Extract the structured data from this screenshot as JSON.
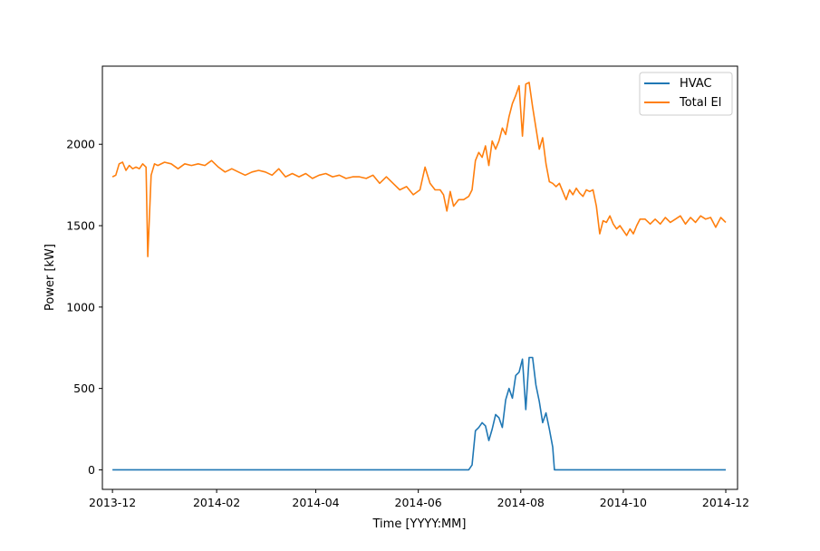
{
  "chart_data": {
    "type": "line",
    "xlabel": "Time [YYYY:MM]",
    "ylabel": "Power [kW]",
    "x_ticks": [
      "2013-12",
      "2014-02",
      "2014-04",
      "2014-06",
      "2014-08",
      "2014-10",
      "2014-12"
    ],
    "y_ticks": [
      0,
      500,
      1000,
      1500,
      2000
    ],
    "xlim": [
      "2013-11-25",
      "2014-12-08"
    ],
    "ylim": [
      -120,
      2480
    ],
    "grid": false,
    "legend_position": "top-right",
    "series": [
      {
        "name": "HVAC",
        "color": "#1f77b4",
        "points": [
          [
            "2013-12-01",
            0
          ],
          [
            "2014-02-01",
            0
          ],
          [
            "2014-04-01",
            0
          ],
          [
            "2014-06-01",
            0
          ],
          [
            "2014-07-01",
            0
          ],
          [
            "2014-07-03",
            30
          ],
          [
            "2014-07-05",
            240
          ],
          [
            "2014-07-07",
            260
          ],
          [
            "2014-07-09",
            290
          ],
          [
            "2014-07-11",
            270
          ],
          [
            "2014-07-13",
            180
          ],
          [
            "2014-07-15",
            250
          ],
          [
            "2014-07-17",
            340
          ],
          [
            "2014-07-19",
            320
          ],
          [
            "2014-07-21",
            260
          ],
          [
            "2014-07-23",
            430
          ],
          [
            "2014-07-25",
            500
          ],
          [
            "2014-07-27",
            440
          ],
          [
            "2014-07-29",
            580
          ],
          [
            "2014-07-31",
            600
          ],
          [
            "2014-08-02",
            680
          ],
          [
            "2014-08-04",
            370
          ],
          [
            "2014-08-06",
            690
          ],
          [
            "2014-08-08",
            690
          ],
          [
            "2014-08-10",
            520
          ],
          [
            "2014-08-12",
            420
          ],
          [
            "2014-08-14",
            290
          ],
          [
            "2014-08-16",
            350
          ],
          [
            "2014-08-18",
            250
          ],
          [
            "2014-08-20",
            140
          ],
          [
            "2014-08-21",
            0
          ],
          [
            "2014-10-01",
            0
          ],
          [
            "2014-12-01",
            0
          ]
        ]
      },
      {
        "name": "Total El",
        "color": "#ff7f0e",
        "points": [
          [
            "2013-12-01",
            1800
          ],
          [
            "2013-12-03",
            1810
          ],
          [
            "2013-12-05",
            1880
          ],
          [
            "2013-12-07",
            1890
          ],
          [
            "2013-12-09",
            1840
          ],
          [
            "2013-12-11",
            1870
          ],
          [
            "2013-12-13",
            1850
          ],
          [
            "2013-12-15",
            1860
          ],
          [
            "2013-12-17",
            1850
          ],
          [
            "2013-12-19",
            1880
          ],
          [
            "2013-12-21",
            1860
          ],
          [
            "2013-12-22",
            1310
          ],
          [
            "2013-12-24",
            1810
          ],
          [
            "2013-12-26",
            1880
          ],
          [
            "2013-12-28",
            1870
          ],
          [
            "2014-01-01",
            1890
          ],
          [
            "2014-01-05",
            1880
          ],
          [
            "2014-01-09",
            1850
          ],
          [
            "2014-01-13",
            1880
          ],
          [
            "2014-01-17",
            1870
          ],
          [
            "2014-01-21",
            1880
          ],
          [
            "2014-01-25",
            1870
          ],
          [
            "2014-01-29",
            1900
          ],
          [
            "2014-02-02",
            1860
          ],
          [
            "2014-02-06",
            1830
          ],
          [
            "2014-02-10",
            1850
          ],
          [
            "2014-02-14",
            1830
          ],
          [
            "2014-02-18",
            1810
          ],
          [
            "2014-02-22",
            1830
          ],
          [
            "2014-02-26",
            1840
          ],
          [
            "2014-03-02",
            1830
          ],
          [
            "2014-03-06",
            1810
          ],
          [
            "2014-03-10",
            1850
          ],
          [
            "2014-03-14",
            1800
          ],
          [
            "2014-03-18",
            1820
          ],
          [
            "2014-03-22",
            1800
          ],
          [
            "2014-03-26",
            1820
          ],
          [
            "2014-03-30",
            1790
          ],
          [
            "2014-04-03",
            1810
          ],
          [
            "2014-04-07",
            1820
          ],
          [
            "2014-04-11",
            1800
          ],
          [
            "2014-04-15",
            1810
          ],
          [
            "2014-04-19",
            1790
          ],
          [
            "2014-04-23",
            1800
          ],
          [
            "2014-04-27",
            1800
          ],
          [
            "2014-05-01",
            1790
          ],
          [
            "2014-05-05",
            1810
          ],
          [
            "2014-05-09",
            1760
          ],
          [
            "2014-05-13",
            1800
          ],
          [
            "2014-05-17",
            1760
          ],
          [
            "2014-05-21",
            1720
          ],
          [
            "2014-05-25",
            1740
          ],
          [
            "2014-05-29",
            1690
          ],
          [
            "2014-06-02",
            1720
          ],
          [
            "2014-06-05",
            1860
          ],
          [
            "2014-06-08",
            1760
          ],
          [
            "2014-06-11",
            1720
          ],
          [
            "2014-06-14",
            1720
          ],
          [
            "2014-06-16",
            1690
          ],
          [
            "2014-06-18",
            1590
          ],
          [
            "2014-06-20",
            1710
          ],
          [
            "2014-06-22",
            1620
          ],
          [
            "2014-06-25",
            1660
          ],
          [
            "2014-06-28",
            1660
          ],
          [
            "2014-07-01",
            1680
          ],
          [
            "2014-07-03",
            1720
          ],
          [
            "2014-07-05",
            1900
          ],
          [
            "2014-07-07",
            1950
          ],
          [
            "2014-07-09",
            1920
          ],
          [
            "2014-07-11",
            1990
          ],
          [
            "2014-07-13",
            1870
          ],
          [
            "2014-07-15",
            2020
          ],
          [
            "2014-07-17",
            1970
          ],
          [
            "2014-07-19",
            2020
          ],
          [
            "2014-07-21",
            2100
          ],
          [
            "2014-07-23",
            2060
          ],
          [
            "2014-07-25",
            2170
          ],
          [
            "2014-07-27",
            2250
          ],
          [
            "2014-07-29",
            2300
          ],
          [
            "2014-07-31",
            2360
          ],
          [
            "2014-08-02",
            2050
          ],
          [
            "2014-08-04",
            2370
          ],
          [
            "2014-08-06",
            2380
          ],
          [
            "2014-08-08",
            2230
          ],
          [
            "2014-08-10",
            2100
          ],
          [
            "2014-08-12",
            1970
          ],
          [
            "2014-08-14",
            2040
          ],
          [
            "2014-08-16",
            1880
          ],
          [
            "2014-08-18",
            1770
          ],
          [
            "2014-08-20",
            1760
          ],
          [
            "2014-08-22",
            1740
          ],
          [
            "2014-08-24",
            1760
          ],
          [
            "2014-08-26",
            1710
          ],
          [
            "2014-08-28",
            1660
          ],
          [
            "2014-08-30",
            1720
          ],
          [
            "2014-09-01",
            1690
          ],
          [
            "2014-09-03",
            1730
          ],
          [
            "2014-09-05",
            1700
          ],
          [
            "2014-09-07",
            1680
          ],
          [
            "2014-09-09",
            1720
          ],
          [
            "2014-09-11",
            1710
          ],
          [
            "2014-09-13",
            1720
          ],
          [
            "2014-09-15",
            1620
          ],
          [
            "2014-09-17",
            1450
          ],
          [
            "2014-09-19",
            1530
          ],
          [
            "2014-09-21",
            1520
          ],
          [
            "2014-09-23",
            1560
          ],
          [
            "2014-09-25",
            1510
          ],
          [
            "2014-09-27",
            1480
          ],
          [
            "2014-09-29",
            1500
          ],
          [
            "2014-10-01",
            1470
          ],
          [
            "2014-10-03",
            1440
          ],
          [
            "2014-10-05",
            1480
          ],
          [
            "2014-10-07",
            1450
          ],
          [
            "2014-10-09",
            1500
          ],
          [
            "2014-10-11",
            1540
          ],
          [
            "2014-10-14",
            1540
          ],
          [
            "2014-10-17",
            1510
          ],
          [
            "2014-10-20",
            1540
          ],
          [
            "2014-10-23",
            1510
          ],
          [
            "2014-10-26",
            1550
          ],
          [
            "2014-10-29",
            1520
          ],
          [
            "2014-11-01",
            1540
          ],
          [
            "2014-11-04",
            1560
          ],
          [
            "2014-11-07",
            1510
          ],
          [
            "2014-11-10",
            1550
          ],
          [
            "2014-11-13",
            1520
          ],
          [
            "2014-11-16",
            1560
          ],
          [
            "2014-11-19",
            1540
          ],
          [
            "2014-11-22",
            1550
          ],
          [
            "2014-11-25",
            1490
          ],
          [
            "2014-11-28",
            1550
          ],
          [
            "2014-12-01",
            1520
          ]
        ]
      }
    ]
  }
}
